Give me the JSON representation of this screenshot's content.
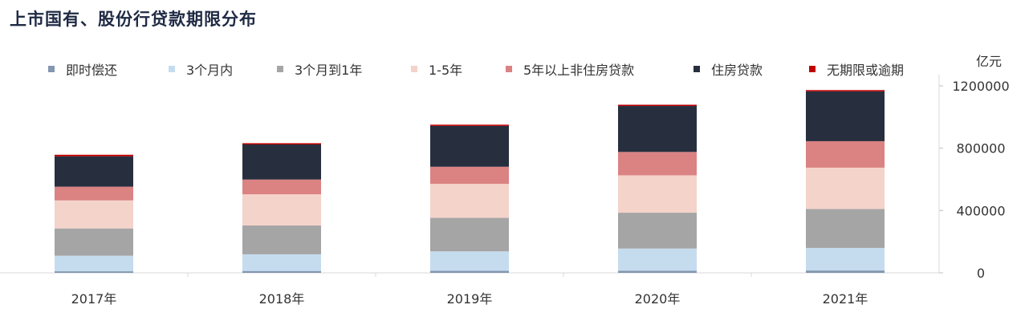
{
  "title": "上市国有、股份行贷款期限分布",
  "chart_data": {
    "type": "bar",
    "stacked": true,
    "title": "上市国有、股份行贷款期限分布",
    "unit": "亿元",
    "categories": [
      "2017年",
      "2018年",
      "2019年",
      "2020年",
      "2021年"
    ],
    "ylim": [
      0,
      1200000
    ],
    "y_ticks": [
      "0",
      "400000",
      "800000",
      "1200000"
    ],
    "y_tick_values": [
      0,
      400000,
      800000,
      1200000
    ],
    "y_axis_side": "right",
    "legend_position": "top",
    "grid": false,
    "series": [
      {
        "name": "即时偿还",
        "color": "#8496b0",
        "values": [
          10000,
          12000,
          13000,
          14000,
          15000
        ]
      },
      {
        "name": "3个月内",
        "color": "#c5dcef",
        "values": [
          100000,
          107000,
          125000,
          142000,
          145000
        ]
      },
      {
        "name": "3个月到1年",
        "color": "#a5a5a5",
        "values": [
          175000,
          185000,
          215000,
          230000,
          250000
        ]
      },
      {
        "name": "1-5年",
        "color": "#f4d3ca",
        "values": [
          180000,
          200000,
          218000,
          240000,
          265000
        ]
      },
      {
        "name": "5年以上非住房贷款",
        "color": "#db8283",
        "values": [
          88000,
          95000,
          110000,
          150000,
          170000
        ]
      },
      {
        "name": "住房贷款",
        "color": "#272f3f",
        "values": [
          195000,
          225000,
          262000,
          295000,
          320000
        ]
      },
      {
        "name": "无期限或逾期",
        "color": "#c00000",
        "values": [
          10000,
          8000,
          8000,
          8000,
          8000
        ]
      }
    ]
  }
}
